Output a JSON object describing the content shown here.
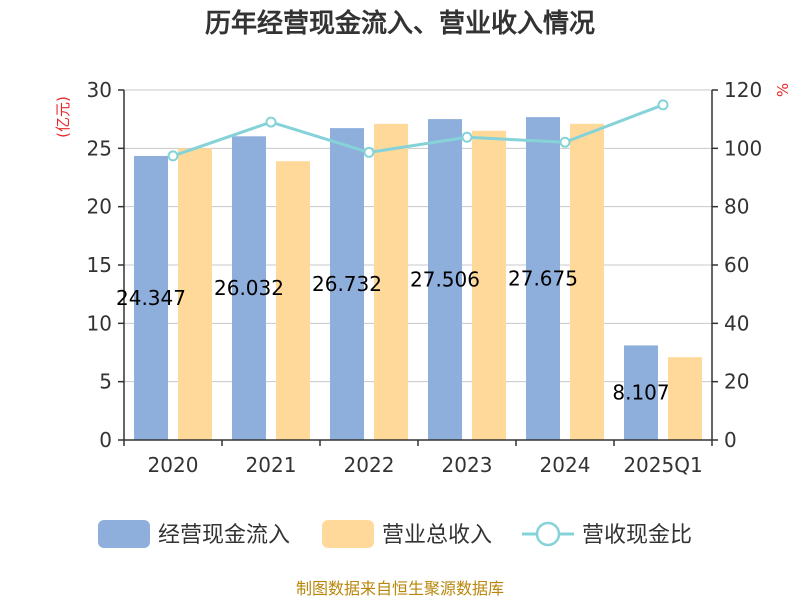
{
  "chart_data": {
    "type": "bar",
    "title": "历年经营现金流入、营业收入情况",
    "categories": [
      "2020",
      "2021",
      "2022",
      "2023",
      "2024",
      "2025Q1"
    ],
    "left_axis": {
      "unit": "(亿元)",
      "ylim": [
        0,
        30
      ],
      "ticks": [
        0,
        5,
        10,
        15,
        20,
        25,
        30
      ]
    },
    "right_axis": {
      "unit": "%",
      "ylim": [
        0,
        120
      ],
      "ticks": [
        0,
        20,
        40,
        60,
        80,
        100,
        120
      ]
    },
    "series": [
      {
        "name": "经营现金流入",
        "type": "bar",
        "axis": "left",
        "color": "#8eaedb",
        "values": [
          24.347,
          26.032,
          26.732,
          27.506,
          27.675,
          8.107
        ],
        "labels": [
          "24.347",
          "26.032",
          "26.732",
          "27.506",
          "27.675",
          "8.107"
        ]
      },
      {
        "name": "营业总收入",
        "type": "bar",
        "axis": "left",
        "color": "#ffd99a",
        "values": [
          25.0,
          23.9,
          27.1,
          26.5,
          27.1,
          7.1
        ]
      },
      {
        "name": "营收现金比",
        "type": "line",
        "axis": "right",
        "color": "#85d3d8",
        "values": [
          97.4,
          109.0,
          98.6,
          103.8,
          102.1,
          114.9
        ]
      }
    ],
    "grid": true,
    "legend_position": "bottom"
  },
  "source": "制图数据来自恒生聚源数据库"
}
